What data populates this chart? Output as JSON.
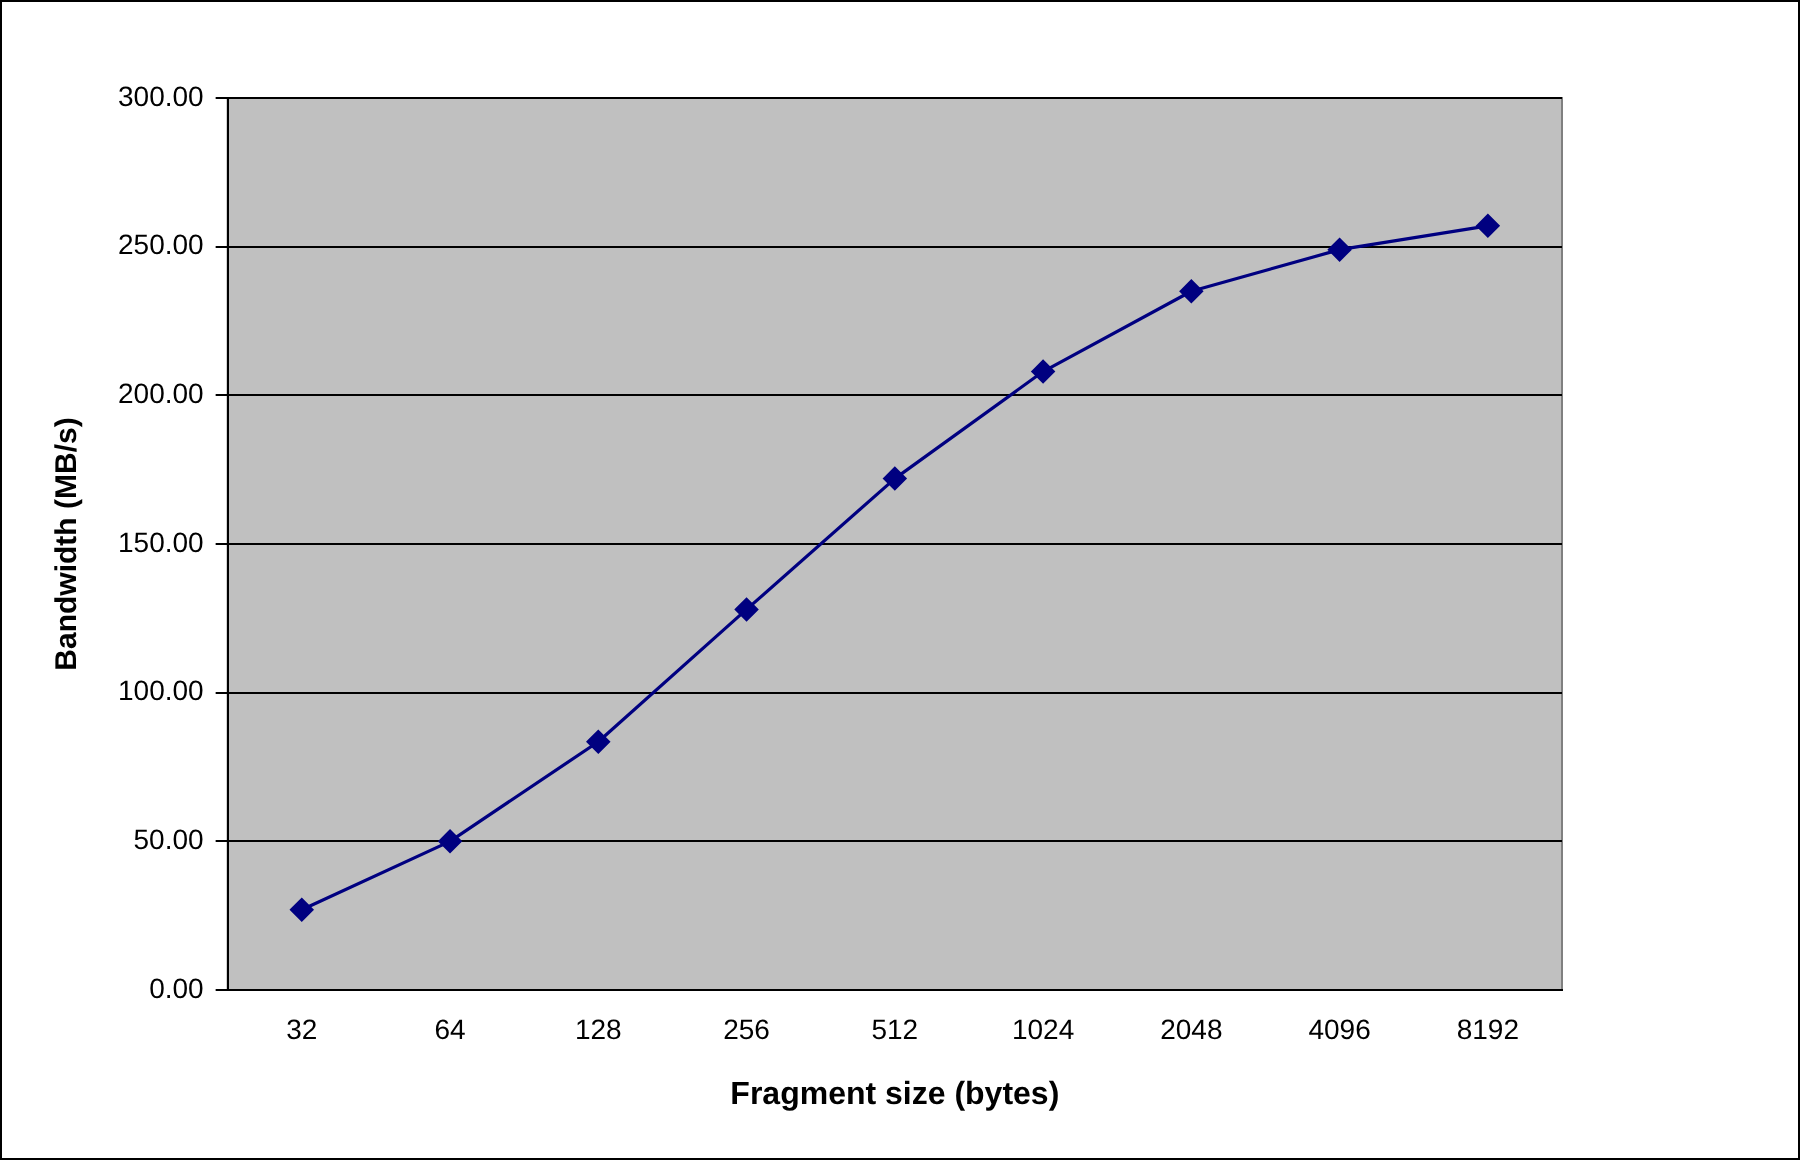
{
  "chart_data": {
    "type": "line",
    "xlabel": "Fragment size (bytes)",
    "ylabel": "Bandwidth (MB/s)",
    "categories": [
      "32",
      "64",
      "128",
      "256",
      "512",
      "1024",
      "2048",
      "4096",
      "8192"
    ],
    "series": [
      {
        "color": "#000080",
        "values": [
          27,
          50,
          83.5,
          128,
          172,
          208,
          235,
          249,
          257
        ]
      }
    ],
    "ylim": [
      0,
      300
    ],
    "yticks": [
      {
        "value": 0,
        "label": "0.00"
      },
      {
        "value": 50,
        "label": "50.00"
      },
      {
        "value": 100,
        "label": "100.00"
      },
      {
        "value": 150,
        "label": "150.00"
      },
      {
        "value": 200,
        "label": "200.00"
      },
      {
        "value": 250,
        "label": "250.00"
      },
      {
        "value": 300,
        "label": "300.00"
      }
    ],
    "grid": "y",
    "legend": false,
    "marker": "diamond",
    "line_style": "solid"
  }
}
